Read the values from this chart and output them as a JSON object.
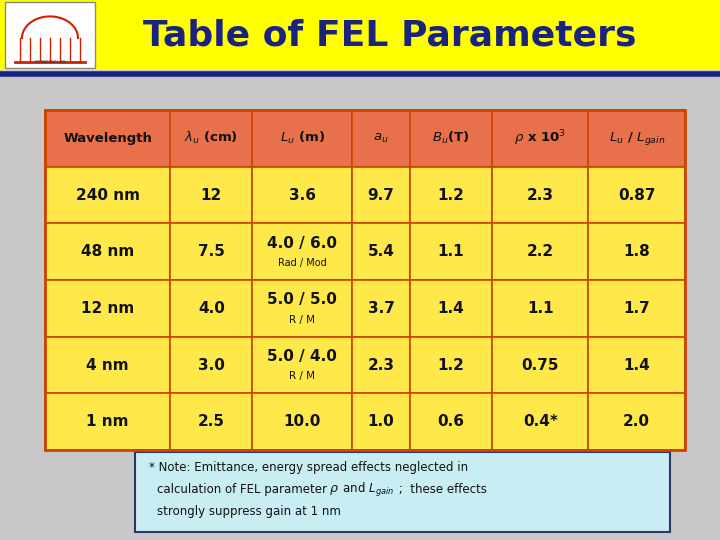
{
  "title": "Table of FEL Parameters",
  "title_bg": "#FFFF00",
  "title_color": "#1a237e",
  "bg_color": "#c8c8c8",
  "header_bg": "#e8704a",
  "row_bg": "#FFE84A",
  "table_border": "#cc4400",
  "dark_blue_line": "#1a237e",
  "note_bg": "#c8eef4",
  "note_border": "#333366",
  "rows": [
    [
      "240 nm",
      "12",
      "3.6",
      "9.7",
      "1.2",
      "2.3",
      "0.87"
    ],
    [
      "48 nm",
      "7.5",
      "4.0 / 6.0\nRad / Mod",
      "5.4",
      "1.1",
      "2.2",
      "1.8"
    ],
    [
      "12 nm",
      "4.0",
      "5.0 / 5.0\nR / M",
      "3.7",
      "1.4",
      "1.1",
      "1.7"
    ],
    [
      "4 nm",
      "3.0",
      "5.0 / 4.0\nR / M",
      "2.3",
      "1.2",
      "0.75",
      "1.4"
    ],
    [
      "1 nm",
      "2.5",
      "10.0",
      "1.0",
      "0.6",
      "0.4*",
      "2.0"
    ]
  ]
}
